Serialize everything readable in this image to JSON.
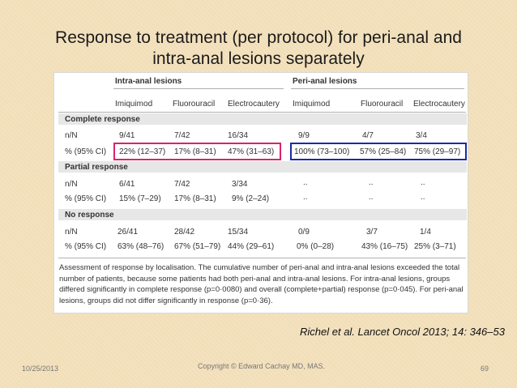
{
  "slide": {
    "title_line1": "Response to treatment (per protocol) for peri-anal and",
    "title_line2": "intra-anal lesions separately",
    "citation": "Richel et al. Lancet Oncol 2013; 14: 346–53",
    "footer_date": "10/25/2013",
    "footer_copyright": "Copyright © Edward Cachay MD, MAS.",
    "page_number": "69"
  },
  "table": {
    "group_headers": [
      "Intra-anal lesions",
      "Peri-anal lesions"
    ],
    "col_headers": [
      "Imiquimod",
      "Fluorouracil",
      "Electrocautery",
      "Imiquimod",
      "Fluorouracil",
      "Electrocautery"
    ],
    "sections": [
      {
        "name": "Complete response",
        "rows": [
          {
            "label": "n/N",
            "cells": [
              "9/41",
              "7/42",
              "16/34",
              "9/9",
              "4/7",
              "3/4"
            ]
          },
          {
            "label": "% (95% CI)",
            "cells": [
              "22% (12–37)",
              "17% (8–31)",
              "47% (31–63)",
              "100% (73–100)",
              "57% (25–84)",
              "75% (29–97)"
            ]
          }
        ]
      },
      {
        "name": "Partial response",
        "rows": [
          {
            "label": "n/N",
            "cells": [
              "6/41",
              "7/42",
              "3/34",
              "..",
              "..",
              ".."
            ]
          },
          {
            "label": "% (95% CI)",
            "cells": [
              "15% (7–29)",
              "17% (8–31)",
              "9% (2–24)",
              "..",
              "..",
              ".."
            ]
          }
        ]
      },
      {
        "name": "No response",
        "rows": [
          {
            "label": "n/N",
            "cells": [
              "26/41",
              "28/42",
              "15/34",
              "0/9",
              "3/7",
              "1/4"
            ]
          },
          {
            "label": "% (95% CI)",
            "cells": [
              "63% (48–76)",
              "67% (51–79)",
              "44% (29–61)",
              "0% (0–28)",
              "43% (16–75)",
              "25% (3–71)"
            ]
          }
        ]
      }
    ],
    "footnote": "Assessment of response by localisation. The cumulative number of peri-anal and intra-anal lesions exceeded the total number of patients, because some patients had both peri-anal and intra-anal lesions. For intra-anal lesions, groups differed significantly in complete response (p=0·0080) and overall (complete+partial) response (p=0·045). For peri-anal lesions, groups did not differ significantly in response (p=0·36).",
    "highlight_colors": {
      "intra": "#d6246e",
      "peri": "#1a2aa8"
    }
  }
}
